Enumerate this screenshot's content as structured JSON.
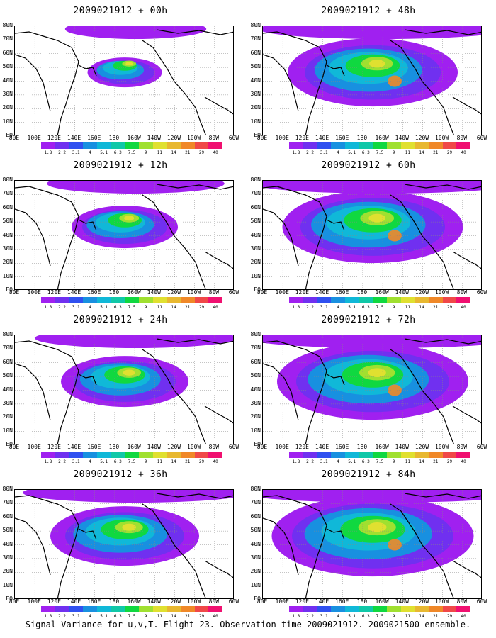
{
  "panels": [
    {
      "title": "2009021912 + 00h",
      "spread": 0.35
    },
    {
      "title": "2009021912 + 48h",
      "spread": 0.8
    },
    {
      "title": "2009021912 + 12h",
      "spread": 0.5
    },
    {
      "title": "2009021912 + 60h",
      "spread": 0.85
    },
    {
      "title": "2009021912 + 24h",
      "spread": 0.6
    },
    {
      "title": "2009021912 + 72h",
      "spread": 0.9
    },
    {
      "title": "2009021912 + 36h",
      "spread": 0.7
    },
    {
      "title": "2009021912 + 84h",
      "spread": 0.95
    }
  ],
  "lat_labels": [
    "80N",
    "70N",
    "60N",
    "50N",
    "40N",
    "30N",
    "20N",
    "10N",
    "EQ"
  ],
  "lon_labels": [
    "80E",
    "100E",
    "120E",
    "140E",
    "160E",
    "180",
    "160W",
    "140W",
    "120W",
    "100W",
    "80W",
    "60W"
  ],
  "colorbar": {
    "labels": [
      "1.8",
      "2.2",
      "3.1",
      "4",
      "5.1",
      "6.3",
      "7.5",
      "9",
      "11",
      "14",
      "21",
      "29",
      "40"
    ],
    "colors": [
      "#a020f0",
      "#7030f0",
      "#3050f0",
      "#1890e0",
      "#10b8d8",
      "#10c8a8",
      "#10d840",
      "#a0e030",
      "#e0e030",
      "#e8b830",
      "#f08828",
      "#f04848",
      "#f01070"
    ]
  },
  "caption": "Signal Variance for u,v,T. Flight 23. Observation time 2009021912. 2009021500 ensemble."
}
